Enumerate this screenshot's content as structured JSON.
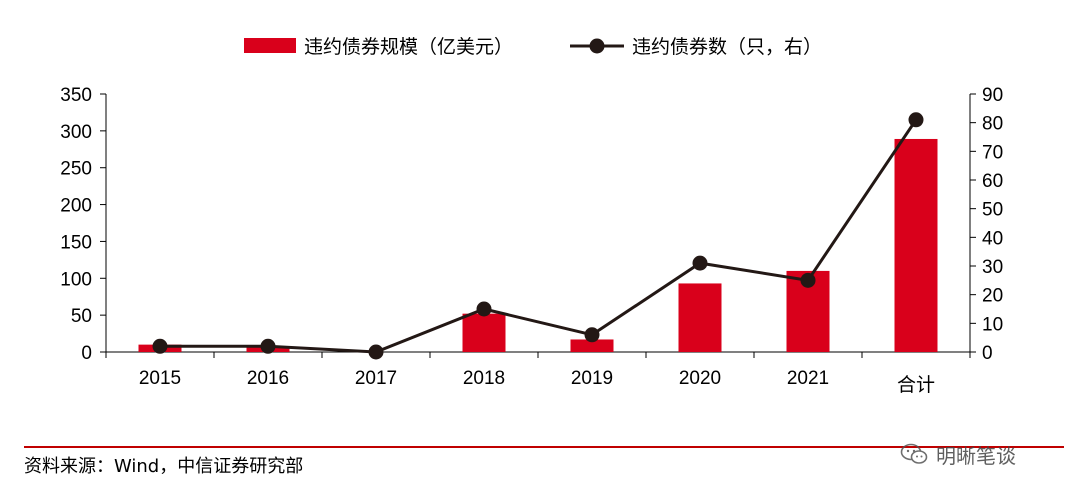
{
  "chart_data": {
    "type": "bar+line",
    "categories": [
      "2015",
      "2016",
      "2017",
      "2018",
      "2019",
      "2020",
      "2021",
      "合计"
    ],
    "series": [
      {
        "name": "违约债券规模（亿美元）",
        "kind": "bar",
        "axis": "left",
        "color": "#d9001b",
        "values": [
          10,
          8,
          0,
          52,
          17,
          93,
          110,
          289
        ]
      },
      {
        "name": "违约债券数（只，右）",
        "kind": "line",
        "axis": "right",
        "color": "#231815",
        "values": [
          2,
          2,
          0,
          15,
          6,
          31,
          25,
          81
        ]
      }
    ],
    "y_left": {
      "ylim": [
        0,
        350
      ],
      "ticks": [
        "0",
        "50",
        "100",
        "150",
        "200",
        "250",
        "300",
        "350"
      ]
    },
    "y_right": {
      "ylim": [
        0,
        90
      ],
      "ticks": [
        "0",
        "10",
        "20",
        "30",
        "40",
        "50",
        "60",
        "70",
        "80",
        "90"
      ]
    },
    "legend_position": "top-center",
    "grid": false
  },
  "source_note": "资料来源：Wind，中信证券研究部",
  "watermark": {
    "text": "明晰笔谈",
    "icon": "wechat-icon"
  }
}
